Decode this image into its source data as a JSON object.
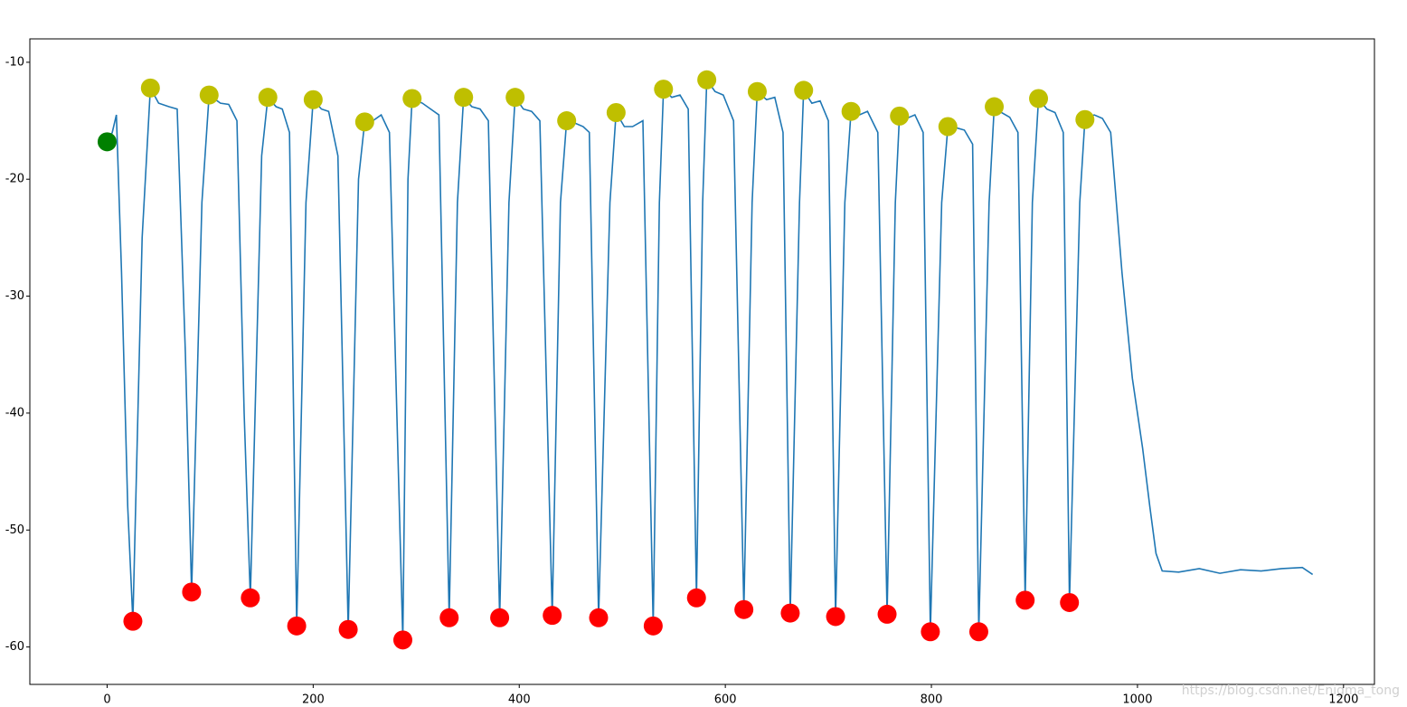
{
  "chart_data": {
    "type": "line",
    "watermark": "https://blog.csdn.net/Enigma_tong",
    "xlim": [
      -75,
      1230
    ],
    "ylim": [
      -63.2,
      -8.0
    ],
    "xticks": [
      0,
      200,
      400,
      600,
      800,
      1000,
      1200
    ],
    "yticks": [
      -60,
      -50,
      -40,
      -30,
      -20,
      -10
    ],
    "series": [
      {
        "type": "line",
        "color": "#1f77b4",
        "x": [
          0,
          5,
          9,
          14,
          20,
          25,
          34,
          42,
          50,
          60,
          68,
          76,
          82,
          92,
          99,
          110,
          118,
          126,
          133,
          139,
          150,
          156,
          164,
          170,
          177,
          184,
          193,
          200,
          208,
          215,
          224,
          234,
          244,
          250,
          258,
          266,
          274,
          287,
          292,
          296,
          306,
          314,
          322,
          332,
          340,
          346,
          354,
          362,
          370,
          381,
          390,
          396,
          404,
          412,
          420,
          432,
          440,
          446,
          454,
          462,
          468,
          477,
          488,
          494,
          502,
          510,
          520,
          530,
          536,
          540,
          548,
          556,
          564,
          572,
          578,
          582,
          590,
          598,
          608,
          618,
          626,
          631,
          640,
          648,
          656,
          663,
          672,
          676,
          684,
          692,
          700,
          707,
          716,
          722,
          730,
          738,
          748,
          757,
          765,
          769,
          776,
          784,
          792,
          799,
          810,
          816,
          824,
          832,
          840,
          846,
          856,
          861,
          868,
          876,
          884,
          891,
          898,
          904,
          912,
          920,
          928,
          934,
          944,
          949,
          958,
          966,
          974,
          985,
          995,
          1005,
          1012,
          1018,
          1024,
          1040,
          1060,
          1080,
          1100,
          1120,
          1140,
          1160,
          1170
        ],
        "values": [
          -16.8,
          -16,
          -14.5,
          -28,
          -48,
          -57.8,
          -25,
          -12.2,
          -13.5,
          -13.8,
          -14,
          -35,
          -55.3,
          -22,
          -12.8,
          -13.5,
          -13.6,
          -15,
          -40,
          -55.8,
          -18,
          -13,
          -13.8,
          -14,
          -16,
          -58.2,
          -22,
          -13.2,
          -14,
          -14.2,
          -18,
          -58.5,
          -20,
          -15.1,
          -15,
          -14.5,
          -16,
          -59.4,
          -20,
          -13.1,
          -13.5,
          -14,
          -14.5,
          -57.5,
          -22,
          -13,
          -13.8,
          -14,
          -15,
          -57.5,
          -22,
          -13,
          -14,
          -14.2,
          -15,
          -57.3,
          -22,
          -15,
          -15.2,
          -15.5,
          -16,
          -57.5,
          -22,
          -14.3,
          -15.5,
          -15.5,
          -15,
          -58.2,
          -22,
          -12.3,
          -13,
          -12.8,
          -14,
          -55.8,
          -22,
          -11.5,
          -12.5,
          -12.8,
          -15,
          -56.8,
          -22,
          -12.5,
          -13.2,
          -13,
          -16,
          -57.1,
          -22,
          -12.4,
          -13.5,
          -13.3,
          -15,
          -57.4,
          -22,
          -14.2,
          -14.5,
          -14.2,
          -16,
          -57.2,
          -22,
          -14.6,
          -14.8,
          -14.5,
          -16,
          -58.7,
          -22,
          -15.5,
          -15.6,
          -15.8,
          -17,
          -58.7,
          -22,
          -13.8,
          -14.3,
          -14.7,
          -16,
          -56,
          -22,
          -13.1,
          -14,
          -14.3,
          -16,
          -56.2,
          -22,
          -14.9,
          -14.5,
          -14.8,
          -16,
          -28,
          -37,
          -43,
          -48,
          -52,
          -53.5,
          -53.6,
          -53.3,
          -53.7,
          -53.4,
          -53.5,
          -53.3,
          -53.2,
          -53.8
        ]
      },
      {
        "type": "scatter",
        "color": "#bfbf00",
        "x": [
          42,
          99,
          156,
          200,
          250,
          296,
          346,
          396,
          446,
          494,
          540,
          582,
          631,
          676,
          722,
          769,
          816,
          861,
          904,
          949
        ],
        "values": [
          -12.2,
          -12.8,
          -13.0,
          -13.2,
          -15.1,
          -13.1,
          -13.0,
          -13.0,
          -15.0,
          -14.3,
          -12.3,
          -11.5,
          -12.5,
          -12.4,
          -14.2,
          -14.6,
          -15.5,
          -13.8,
          -13.1,
          -14.9
        ]
      },
      {
        "type": "scatter",
        "color": "#ff0000",
        "x": [
          25,
          82,
          139,
          184,
          234,
          287,
          332,
          381,
          432,
          477,
          530,
          572,
          618,
          663,
          707,
          757,
          799,
          846,
          891,
          934
        ],
        "values": [
          -57.8,
          -55.3,
          -55.8,
          -58.2,
          -58.5,
          -59.4,
          -57.5,
          -57.5,
          -57.3,
          -57.5,
          -58.2,
          -55.8,
          -56.8,
          -57.1,
          -57.4,
          -57.2,
          -58.7,
          -58.7,
          -56.0,
          -56.2
        ]
      },
      {
        "type": "scatter",
        "color": "#008000",
        "x": [
          0
        ],
        "values": [
          -16.8
        ]
      }
    ]
  }
}
